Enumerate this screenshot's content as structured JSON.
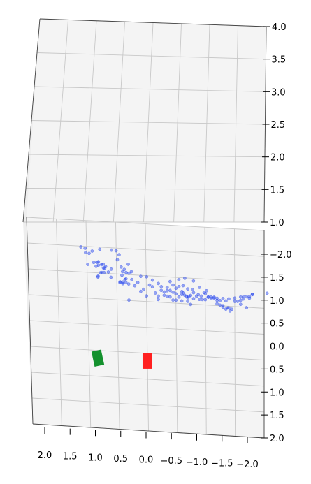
{
  "chart_data": {
    "type": "scatter",
    "projection": "3d",
    "title": "",
    "xlabel": "",
    "ylabel": "",
    "zlabel": "",
    "grid": true,
    "colors": {
      "points": "#2040ee",
      "pane": "#f4f4f4",
      "marker_green": "#14912e",
      "marker_red": "#ff2020"
    },
    "axes": {
      "x": {
        "range": [
          2.0,
          -2.0
        ],
        "ticks": [
          "2.0",
          "1.5",
          "1.0",
          "0.5",
          "0.0",
          "−0.5",
          "−1.0",
          "−1.5",
          "−2.0"
        ]
      },
      "y": {
        "range": [
          -2.0,
          2.0
        ],
        "ticks": [
          "−2.0",
          "1.5",
          "1.0",
          "0.5",
          "0.0",
          "0.5",
          "1.0",
          "1.5",
          "2.0"
        ]
      },
      "z": {
        "range": [
          1.0,
          4.0
        ],
        "ticks": [
          "1.0",
          "1.5",
          "2.0",
          "2.5",
          "3.0",
          "3.5",
          "4.0"
        ]
      }
    },
    "markers": [
      {
        "name": "",
        "shape": "box",
        "color": "#14912e",
        "x": 0.85,
        "y": 0.65,
        "z": 0.0
      },
      {
        "name": "",
        "shape": "box",
        "color": "#ff2020",
        "x": 0.0,
        "y": 0.65,
        "z": 0.0
      }
    ],
    "series": [
      {
        "name": "",
        "points": [
          [
            1.05,
            -0.3,
            2.0
          ],
          [
            1.04,
            -0.3,
            1.93
          ],
          [
            1.12,
            -0.32,
            2.0
          ],
          [
            0.98,
            -0.3,
            1.92
          ],
          [
            0.93,
            -0.28,
            1.98
          ],
          [
            0.8,
            -0.3,
            2.0
          ],
          [
            0.6,
            -0.3,
            2.0
          ],
          [
            0.85,
            -0.3,
            1.78
          ],
          [
            0.82,
            -0.4,
            1.7
          ],
          [
            0.86,
            -0.4,
            1.62
          ],
          [
            0.7,
            -0.32,
            1.7
          ],
          [
            1.0,
            -0.45,
            1.6
          ],
          [
            0.38,
            -0.4,
            1.6
          ],
          [
            0.35,
            -0.4,
            1.55
          ],
          [
            0.42,
            -0.4,
            1.5
          ],
          [
            0.6,
            -0.5,
            1.5
          ],
          [
            0.65,
            -0.5,
            1.45
          ],
          [
            0.35,
            -0.45,
            1.4
          ],
          [
            0.3,
            -0.5,
            1.45
          ],
          [
            0.4,
            -0.5,
            1.3
          ],
          [
            0.45,
            -0.5,
            1.3
          ],
          [
            0.25,
            -0.5,
            1.35
          ],
          [
            0.72,
            -0.6,
            1.35
          ],
          [
            0.78,
            -0.65,
            1.3
          ],
          [
            0.82,
            -0.7,
            1.2
          ],
          [
            0.82,
            -0.8,
            1.1
          ],
          [
            0.75,
            -0.95,
            1.05
          ],
          [
            0.7,
            -1.1,
            1.0
          ],
          [
            0.72,
            -1.2,
            0.92
          ],
          [
            0.75,
            -1.35,
            0.85
          ],
          [
            0.8,
            -1.4,
            0.8
          ],
          [
            0.72,
            -1.45,
            0.78
          ],
          [
            0.45,
            -0.6,
            1.2
          ],
          [
            0.4,
            -0.7,
            1.1
          ],
          [
            0.3,
            -0.7,
            1.1
          ],
          [
            0.36,
            -0.9,
            1.0
          ],
          [
            0.4,
            -1.05,
            1.0
          ],
          [
            0.42,
            -1.2,
            0.95
          ],
          [
            0.48,
            -1.4,
            0.9
          ],
          [
            0.45,
            -1.5,
            0.9
          ],
          [
            0.5,
            -1.6,
            0.88
          ],
          [
            0.35,
            -0.55,
            1.25
          ],
          [
            0.6,
            -0.75,
            1.15
          ],
          [
            0.25,
            -1.0,
            1.05
          ],
          [
            0.3,
            -1.2,
            1.0
          ],
          [
            0.1,
            -0.4,
            1.5
          ],
          [
            0.0,
            -0.4,
            1.5
          ],
          [
            -0.1,
            -0.4,
            1.45
          ],
          [
            -0.2,
            -0.4,
            1.4
          ],
          [
            -0.25,
            -0.4,
            1.35
          ],
          [
            -0.35,
            -0.45,
            1.3
          ],
          [
            -0.4,
            -0.45,
            1.25
          ],
          [
            -0.5,
            -0.45,
            1.2
          ],
          [
            -0.55,
            -0.45,
            1.15
          ],
          [
            -0.6,
            -0.5,
            1.15
          ],
          [
            -0.7,
            -0.5,
            1.1
          ],
          [
            -0.75,
            -0.55,
            1.1
          ],
          [
            -0.8,
            -0.55,
            1.05
          ],
          [
            -0.85,
            -0.6,
            1.05
          ],
          [
            -0.9,
            -0.6,
            1.0
          ],
          [
            -0.95,
            -0.6,
            1.0
          ],
          [
            -1.0,
            -0.6,
            1.0
          ],
          [
            -1.05,
            -0.65,
            1.0
          ],
          [
            -1.1,
            -0.65,
            0.98
          ],
          [
            -1.15,
            -0.7,
            0.95
          ],
          [
            -1.2,
            -0.7,
            0.95
          ],
          [
            -1.3,
            -0.7,
            0.95
          ],
          [
            -1.4,
            -0.7,
            0.95
          ],
          [
            -1.5,
            -0.72,
            0.95
          ],
          [
            -1.6,
            -0.75,
            0.95
          ],
          [
            -1.65,
            -0.7,
            1.0
          ],
          [
            -1.7,
            -0.68,
            1.02
          ],
          [
            -1.8,
            -0.7,
            1.05
          ],
          [
            -2.05,
            -0.7,
            1.08
          ],
          [
            -1.75,
            -0.65,
            1.05
          ],
          [
            -1.65,
            -0.6,
            1.05
          ],
          [
            -1.6,
            -0.55,
            1.0
          ],
          [
            -1.7,
            -0.55,
            0.95
          ],
          [
            -1.5,
            -0.6,
            1.0
          ],
          [
            -1.35,
            -0.6,
            1.0
          ],
          [
            -1.25,
            -0.6,
            1.0
          ],
          [
            -1.2,
            -0.6,
            1.0
          ],
          [
            -1.15,
            -0.6,
            1.05
          ],
          [
            -1.1,
            -0.6,
            1.05
          ],
          [
            -1.05,
            -0.6,
            1.05
          ],
          [
            -1.0,
            -0.6,
            1.1
          ],
          [
            -1.2,
            -0.65,
            0.9
          ],
          [
            -1.25,
            -0.65,
            0.88
          ],
          [
            -1.3,
            -0.65,
            0.85
          ],
          [
            -1.35,
            -0.65,
            0.82
          ],
          [
            -1.4,
            -0.7,
            0.8
          ],
          [
            -1.45,
            -0.7,
            0.78
          ],
          [
            -1.42,
            -0.7,
            0.75
          ],
          [
            -1.38,
            -0.7,
            0.8
          ],
          [
            -1.3,
            -0.7,
            0.83
          ],
          [
            -0.6,
            -0.5,
            1.2
          ],
          [
            -0.62,
            -0.5,
            1.18
          ],
          [
            -0.65,
            -0.5,
            1.14
          ],
          [
            -0.68,
            -0.5,
            1.12
          ],
          [
            -0.72,
            -0.55,
            1.08
          ],
          [
            -0.5,
            -0.5,
            1.05
          ],
          [
            -0.45,
            -0.5,
            1.05
          ],
          [
            -0.4,
            -0.5,
            1.1
          ],
          [
            -0.3,
            -0.5,
            1.12
          ],
          [
            -0.2,
            -0.5,
            1.1
          ],
          [
            -0.15,
            -0.5,
            1.15
          ],
          [
            -0.25,
            -0.5,
            1.2
          ],
          [
            -0.35,
            -0.5,
            1.2
          ],
          [
            -0.45,
            -0.5,
            1.18
          ],
          [
            -0.5,
            -0.5,
            1.25
          ],
          [
            -0.55,
            -0.5,
            1.28
          ],
          [
            -0.62,
            -0.5,
            1.3
          ],
          [
            -0.7,
            -0.5,
            1.25
          ],
          [
            -0.78,
            -0.55,
            1.2
          ],
          [
            -0.8,
            -0.55,
            1.15
          ],
          [
            -0.88,
            -0.55,
            1.12
          ],
          [
            -0.93,
            -0.55,
            1.1
          ],
          [
            -0.98,
            -0.6,
            1.12
          ],
          [
            -1.02,
            -0.6,
            1.15
          ],
          [
            -0.35,
            -0.45,
            1.15
          ],
          [
            -0.3,
            -0.45,
            1.22
          ],
          [
            -0.45,
            -0.5,
            1.3
          ],
          [
            -0.55,
            -0.55,
            1.35
          ],
          [
            0.05,
            -0.5,
            1.2
          ],
          [
            0.2,
            -0.5,
            1.25
          ],
          [
            -0.1,
            -0.5,
            1.25
          ],
          [
            -0.05,
            -0.45,
            1.32
          ],
          [
            0.15,
            -0.45,
            1.35
          ],
          [
            -0.65,
            -0.55,
            1.38
          ],
          [
            -0.8,
            -0.6,
            1.3
          ],
          [
            -0.9,
            -0.6,
            1.2
          ],
          [
            -0.7,
            -0.55,
            1.0
          ],
          [
            -0.6,
            -0.55,
            1.0
          ],
          [
            -0.75,
            -0.55,
            0.95
          ],
          [
            0.0,
            -0.55,
            1.05
          ],
          [
            -0.2,
            -0.55,
            1.0
          ],
          [
            0.3,
            -0.45,
            1.05
          ],
          [
            0.1,
            -0.4,
            1.25
          ],
          [
            -0.4,
            -0.45,
            1.4
          ],
          [
            -1.55,
            -0.72,
            0.9
          ],
          [
            -1.6,
            -0.72,
            0.92
          ],
          [
            -1.8,
            -0.75,
            1.0
          ],
          [
            -1.75,
            -0.7,
            0.98
          ],
          [
            0.9,
            -0.38,
            1.7
          ]
        ]
      }
    ]
  }
}
